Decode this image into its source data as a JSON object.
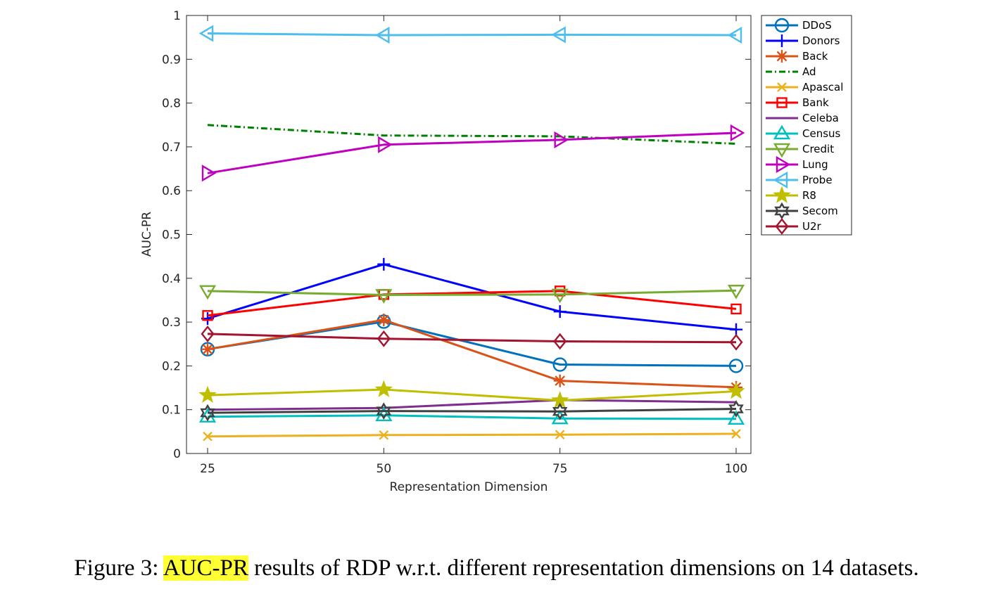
{
  "caption": {
    "prefix": "Figure 3: ",
    "highlight": "AUC-PR",
    "rest": " results of RDP w.r.t. different representation dimensions on 14 datasets.",
    "highlight_color": "#ffff33"
  },
  "chart_data": {
    "type": "line",
    "title": "",
    "xlabel": "Representation Dimension",
    "ylabel": "AUC-PR",
    "x": [
      25,
      50,
      75,
      100
    ],
    "xticks": [
      "25",
      "50",
      "75",
      "100"
    ],
    "yticks": [
      "0",
      "0.1",
      "0.2",
      "0.3",
      "0.4",
      "0.5",
      "0.6",
      "0.7",
      "0.8",
      "0.9",
      "1"
    ],
    "ylim": [
      0,
      1
    ],
    "grid": false,
    "legend_position": "outside-top-right",
    "series": [
      {
        "name": "DDoS",
        "color": "#0072bd",
        "marker": "circle",
        "dash": "solid",
        "values": [
          0.238,
          0.301,
          0.203,
          0.2
        ]
      },
      {
        "name": "Donors",
        "color": "#0000ff",
        "marker": "plus",
        "dash": "solid",
        "values": [
          0.308,
          0.432,
          0.324,
          0.283
        ]
      },
      {
        "name": "Back",
        "color": "#d95319",
        "marker": "asterisk",
        "dash": "solid",
        "values": [
          0.238,
          0.305,
          0.166,
          0.151
        ]
      },
      {
        "name": "Ad",
        "color": "#008000",
        "marker": "none",
        "dash": "dashdot",
        "values": [
          0.75,
          0.726,
          0.724,
          0.707
        ]
      },
      {
        "name": "Apascal",
        "color": "#edb120",
        "marker": "x",
        "dash": "solid",
        "values": [
          0.039,
          0.042,
          0.043,
          0.045
        ]
      },
      {
        "name": "Bank",
        "color": "#ff0000",
        "marker": "square",
        "dash": "solid",
        "values": [
          0.315,
          0.363,
          0.371,
          0.33
        ]
      },
      {
        "name": "Celeba",
        "color": "#7e2f8e",
        "marker": "none",
        "dash": "solid",
        "values": [
          0.1,
          0.104,
          0.122,
          0.117
        ]
      },
      {
        "name": "Census",
        "color": "#00bfbf",
        "marker": "triangle-up",
        "dash": "solid",
        "values": [
          0.084,
          0.087,
          0.08,
          0.079
        ]
      },
      {
        "name": "Credit",
        "color": "#77ac30",
        "marker": "triangle-down",
        "dash": "solid",
        "values": [
          0.371,
          0.362,
          0.363,
          0.372
        ]
      },
      {
        "name": "Lung",
        "color": "#bf00bf",
        "marker": "triangle-right",
        "dash": "solid",
        "values": [
          0.64,
          0.705,
          0.716,
          0.732
        ]
      },
      {
        "name": "Probe",
        "color": "#4dbeee",
        "marker": "triangle-left",
        "dash": "solid",
        "values": [
          0.959,
          0.955,
          0.956,
          0.955
        ]
      },
      {
        "name": "R8",
        "color": "#bfbf00",
        "marker": "star",
        "dash": "solid",
        "values": [
          0.133,
          0.146,
          0.121,
          0.142
        ]
      },
      {
        "name": "Secom",
        "color": "#404040",
        "marker": "hexagram",
        "dash": "solid",
        "values": [
          0.093,
          0.097,
          0.096,
          0.102
        ]
      },
      {
        "name": "U2r",
        "color": "#a2142f",
        "marker": "diamond",
        "dash": "solid",
        "values": [
          0.273,
          0.262,
          0.256,
          0.254
        ]
      }
    ]
  }
}
